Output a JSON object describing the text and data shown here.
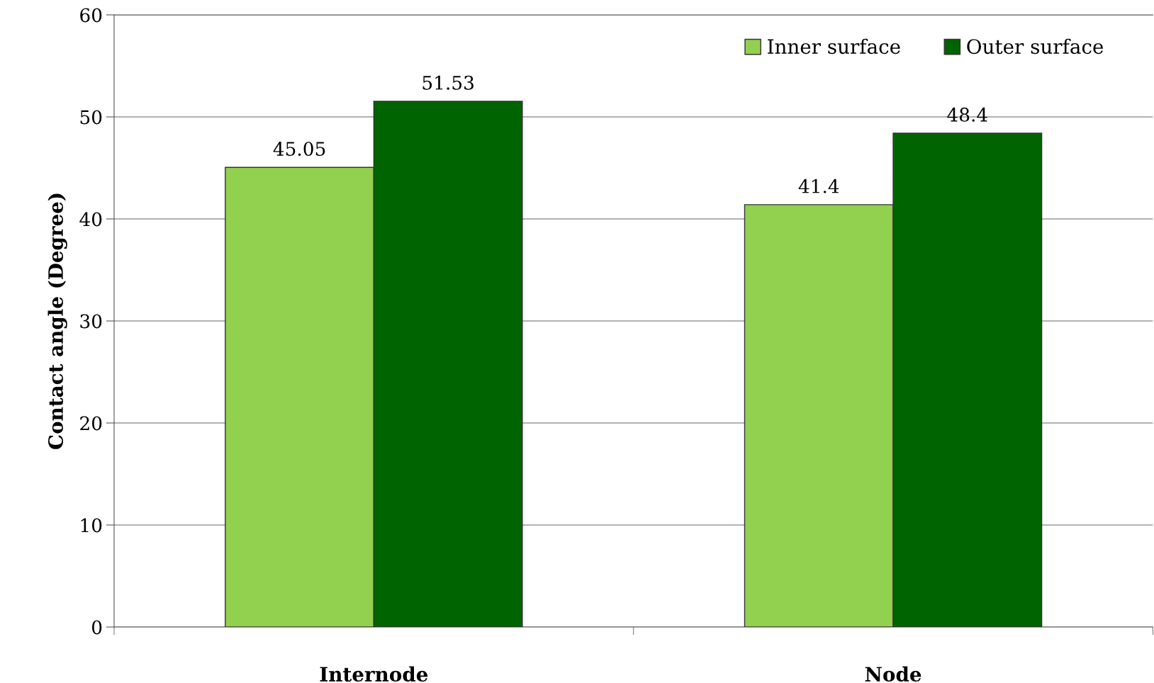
{
  "chart_data": {
    "type": "bar",
    "ylabel": "Contact angle (Degree)",
    "categories": [
      "Internode",
      "Node"
    ],
    "series": [
      {
        "name": "Inner surface",
        "color": "#92d050",
        "values": [
          45.05,
          41.4
        ]
      },
      {
        "name": "Outer surface",
        "color": "#006400",
        "values": [
          51.53,
          48.4
        ]
      }
    ],
    "ylim": [
      0,
      60
    ],
    "yticks": [
      0,
      10,
      20,
      30,
      40,
      50,
      60
    ],
    "grid": "y",
    "legend": "top right",
    "data_labels": true
  }
}
